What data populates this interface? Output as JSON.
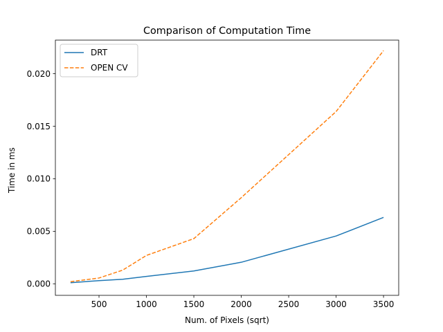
{
  "chart_data": {
    "type": "line",
    "title": "Comparison of Computation Time",
    "xlabel": "Num. of Pixels (sqrt)",
    "ylabel": "Time in ms",
    "xlim": [
      40,
      3660
    ],
    "ylim": [
      -0.0011,
      0.0232
    ],
    "xticks": [
      500,
      1000,
      1500,
      2000,
      2500,
      3000,
      3500
    ],
    "xtick_labels": [
      "500",
      "1000",
      "1500",
      "2000",
      "2500",
      "3000",
      "3500"
    ],
    "yticks": [
      0.0,
      0.005,
      0.01,
      0.015,
      0.02
    ],
    "ytick_labels": [
      "0.000",
      "0.005",
      "0.010",
      "0.015",
      "0.020"
    ],
    "grid": false,
    "legend_position": "top-left",
    "series": [
      {
        "name": "DRT",
        "color": "#1f77b4",
        "dash": "solid",
        "x": [
          200,
          500,
          750,
          1000,
          1500,
          2000,
          3000,
          3500
        ],
        "y": [
          0.0001,
          0.0003,
          0.00043,
          0.0007,
          0.00122,
          0.00205,
          0.00455,
          0.00632
        ]
      },
      {
        "name": "OPEN CV",
        "color": "#ff7f0e",
        "dash": "dashed",
        "x": [
          200,
          500,
          750,
          1000,
          1500,
          2000,
          3000,
          3500
        ],
        "y": [
          0.0002,
          0.00055,
          0.0013,
          0.0027,
          0.0043,
          0.0082,
          0.0164,
          0.0222
        ]
      }
    ]
  }
}
